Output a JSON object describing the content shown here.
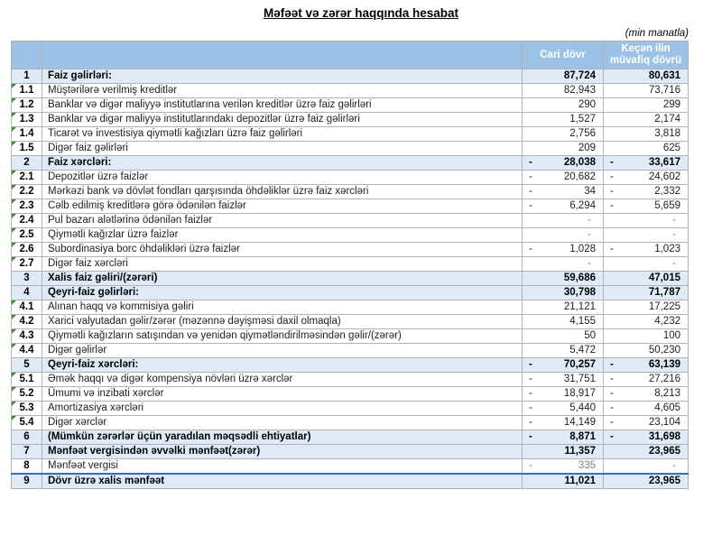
{
  "title": "Məfəət və zərər haqqında hesabat",
  "unit_note": "(min manatla)",
  "columns": {
    "current": "Cari dövr",
    "previous": "Keçən ilin müvafiq dövrü"
  },
  "rows": [
    {
      "no": "1",
      "label": "Faiz gəlirləri:",
      "cur": "87,724",
      "prev": "80,631",
      "bold": true
    },
    {
      "no": "1.1",
      "label": "Müştərilərə verilmiş kreditlər",
      "cur": "82,943",
      "prev": "73,716",
      "marker": true
    },
    {
      "no": "1.2",
      "label": "Banklar və digər maliyyə institutlarına verilən kreditlər üzrə faiz gəlirləri",
      "cur": "290",
      "prev": "299",
      "marker": true
    },
    {
      "no": "1.3",
      "label": "Banklar və digər maliyyə institutlarındakı depozitlər üzrə faiz gəlirləri",
      "cur": "1,527",
      "prev": "2,174",
      "marker": true
    },
    {
      "no": "1.4",
      "label": "Ticarət və investisiya qiymətli kağızları üzrə faiz gəlirləri",
      "cur": "2,756",
      "prev": "3,818",
      "marker": true
    },
    {
      "no": "1.5",
      "label": "Digər faiz gəlirləri",
      "cur": "209",
      "prev": "625",
      "marker": true
    },
    {
      "no": "2",
      "label": "Faiz xərcləri:",
      "cur": "28,038",
      "prev": "33,617",
      "bold": true,
      "cur_neg": true,
      "prev_neg": true
    },
    {
      "no": "2.1",
      "label": "Depozitlər üzrə faizlər",
      "cur": "20,682",
      "prev": "24,602",
      "cur_neg": true,
      "prev_neg": true,
      "marker": true
    },
    {
      "no": "2.2",
      "label": "Mərkəzi bank və dövlət fondları qarşısında öhdəliklər üzrə faiz xərcləri",
      "cur": "34",
      "prev": "2,332",
      "cur_neg": true,
      "prev_neg": true,
      "marker": true
    },
    {
      "no": "2.3",
      "label": "Cəlb edilmiş kreditlərə görə ödənilən faizlər",
      "cur": "6,294",
      "prev": "5,659",
      "cur_neg": true,
      "prev_neg": true,
      "marker": true
    },
    {
      "no": "2.4",
      "label": "Pul bazarı alətlərinə ödənilən faizlər",
      "cur": "-",
      "prev": "-",
      "marker": true
    },
    {
      "no": "2.5",
      "label": "Qiymətli kağızlar üzrə faizlər",
      "cur": "-",
      "prev": "-",
      "marker": true
    },
    {
      "no": "2.6",
      "label": "Subordinasiya borc öhdəlikləri üzrə faizlər",
      "cur": "1,028",
      "prev": "1,023",
      "cur_neg": true,
      "prev_neg": true,
      "marker": true
    },
    {
      "no": "2.7",
      "label": "Digər faiz xərcləri",
      "cur": "-",
      "prev": "-",
      "marker": true
    },
    {
      "no": "3",
      "label": "Xalis faiz gəliri/(zərəri)",
      "cur": "59,686",
      "prev": "47,015",
      "bold": true
    },
    {
      "no": "4",
      "label": "Qeyri-faiz gəlirləri:",
      "cur": "30,798",
      "prev": "71,787",
      "bold": true
    },
    {
      "no": "4.1",
      "label": "Alınan haqq və kommisiya gəliri",
      "cur": "21,121",
      "prev": "17,225",
      "marker": true
    },
    {
      "no": "4.2",
      "label": "Xarici valyutadan gəlir/zərər (məzənnə dəyişməsi daxil olmaqla)",
      "cur": "4,155",
      "prev": "4,232",
      "marker": true
    },
    {
      "no": "4.3",
      "label": "Qiymətli kağızların satışından və yenidən qiymətləndirilməsindən gəlir/(zərər)",
      "cur": "50",
      "prev": "100",
      "marker": true
    },
    {
      "no": "4.4",
      "label": "Digər gəlirlər",
      "cur": "5,472",
      "prev": "50,230",
      "marker": true
    },
    {
      "no": "5",
      "label": "Qeyri-faiz xərcləri:",
      "cur": "70,257",
      "prev": "63,139",
      "bold": true,
      "cur_neg": true,
      "prev_neg": true
    },
    {
      "no": "5.1",
      "label": "Əmək haqqı və digər kompensiya növləri üzrə xərclər",
      "cur": "31,751",
      "prev": "27,216",
      "cur_neg": true,
      "prev_neg": true,
      "marker": true
    },
    {
      "no": "5.2",
      "label": "Ümumi və inzibati xərclər",
      "cur": "18,917",
      "prev": "8,213",
      "cur_neg": true,
      "prev_neg": true,
      "marker": true
    },
    {
      "no": "5.3",
      "label": "Amortizasiya xərcləri",
      "cur": "5,440",
      "prev": "4,605",
      "cur_neg": true,
      "prev_neg": true,
      "marker": true
    },
    {
      "no": "5.4",
      "label": "Digər xərclər",
      "cur": "14,149",
      "prev": "23,104",
      "cur_neg": true,
      "prev_neg": true,
      "marker": true
    },
    {
      "no": "6",
      "label": "(Mümkün zərərlər üçün yaradılan məqsədli ehtiyatlar)",
      "cur": "8,871",
      "prev": "31,698",
      "bold": true,
      "cur_neg": true,
      "prev_neg": true
    },
    {
      "no": "7",
      "label": "Mənfəət vergisindən əvvəlki mənfəət(zərər)",
      "cur": "11,357",
      "prev": "23,965",
      "bold": true
    },
    {
      "no": "8",
      "label": "Mənfəət vergisi",
      "cur": "335",
      "prev": "-",
      "cur_neg": true,
      "muted": true
    },
    {
      "no": "9",
      "label": "Dövr üzrə xalis mənfəət",
      "cur": "11,021",
      "prev": "23,965",
      "bold": true,
      "total_top": true
    }
  ]
}
